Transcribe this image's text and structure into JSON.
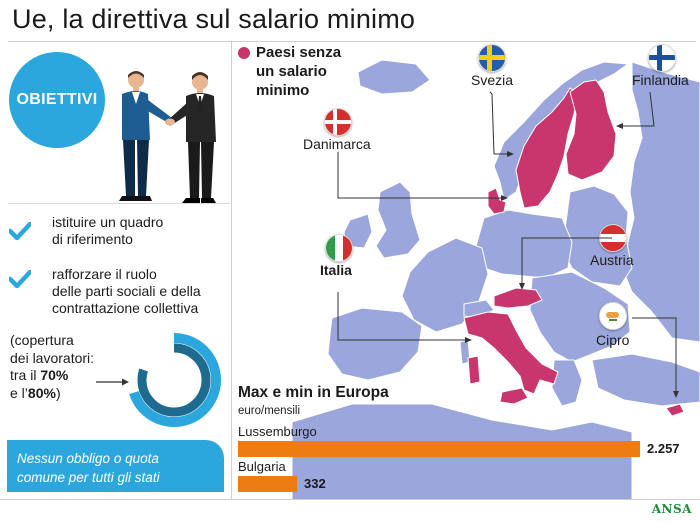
{
  "header": {
    "title": "Ue, la direttiva sul salario minimo"
  },
  "left": {
    "badge": "OBIETTIVI",
    "objectives": [
      {
        "line1": "istituire un quadro",
        "line2": "di riferimento",
        "line3": ""
      },
      {
        "line1": "rafforzare il ruolo",
        "line2": "delle parti sociali e della",
        "line3": "contrattazione collettiva"
      }
    ],
    "note": {
      "line1": "(copertura",
      "line2": "dei lavoratori:",
      "line3_pre": "tra il ",
      "line3_bold": "70%",
      "line4_pre": "e l’",
      "line4_bold": "80%",
      "line4_post": ")"
    },
    "box": {
      "line1": "Nessun obbligo o quota",
      "line2": "comune per tutti gli stati"
    }
  },
  "map": {
    "legend": {
      "color": "#c9366e",
      "line1": "Paesi senza",
      "line2": "un salario",
      "line3": "minimo"
    },
    "countries": {
      "svezia": "Svezia",
      "finlandia": "Finlandia",
      "danimarca": "Danimarca",
      "austria": "Austria",
      "italia": "Italia",
      "cipro": "Cipro"
    }
  },
  "bars": {
    "title": "Max e min in Europa",
    "unit": "euro/mensili",
    "items": [
      {
        "label": "Lussemburgo",
        "value": "2.257",
        "amount": 2257
      },
      {
        "label": "Bulgaria",
        "value": "332",
        "amount": 332
      }
    ],
    "color": "#ee7d11"
  },
  "footer": {
    "brand": "ANSA"
  },
  "colors": {
    "accent_blue": "#2ba7de",
    "highlight": "#c9366e",
    "map_land": "#9aa6dc",
    "bar": "#ee7d11"
  }
}
